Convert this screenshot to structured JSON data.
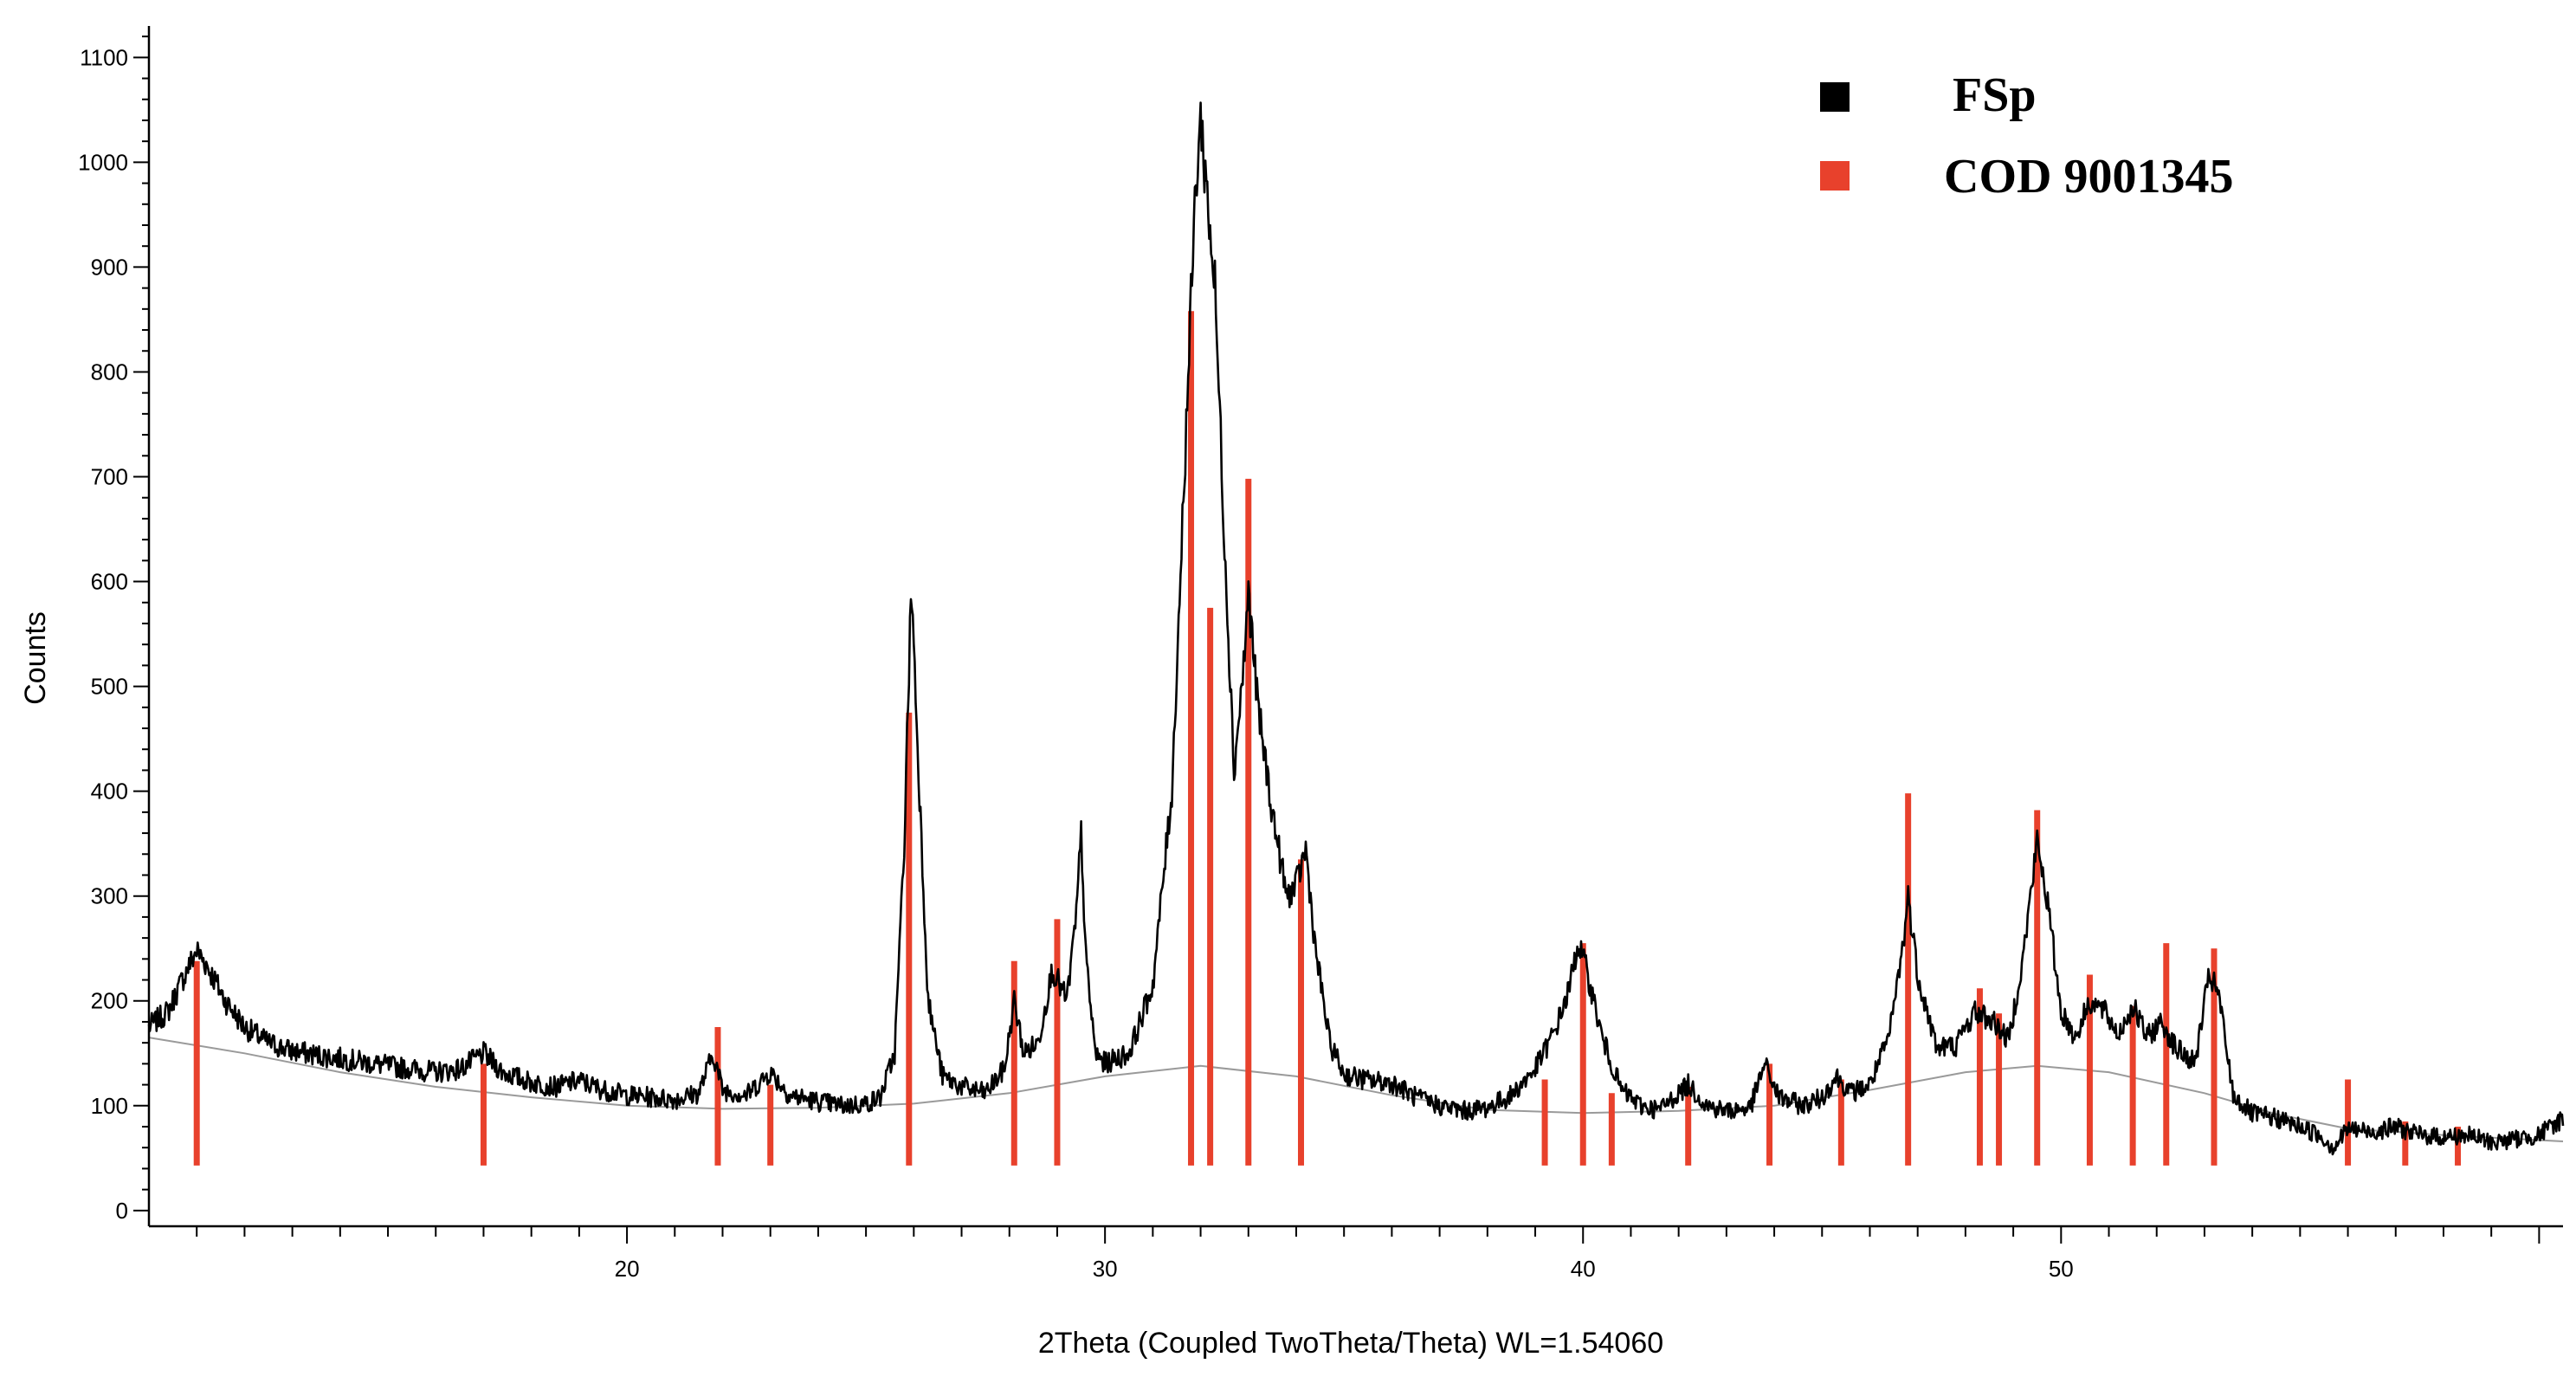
{
  "chart_data": {
    "type": "line",
    "xlabel": "2Theta (Coupled TwoTheta/Theta) WL=1.54060",
    "ylabel": "Counts",
    "xlim": [
      10,
      60.5
    ],
    "ylim": [
      -15,
      1130
    ],
    "x_ticks": [
      20,
      30,
      40,
      50
    ],
    "y_ticks": [
      0,
      100,
      200,
      300,
      400,
      500,
      600,
      700,
      800,
      900,
      1000,
      1100
    ],
    "grid": false,
    "legend_position": "top-right",
    "legend": [
      {
        "label": "FSp",
        "color": "#000000"
      },
      {
        "label": "COD 9001345",
        "color": "#e8412c"
      }
    ],
    "series": [
      {
        "name": "FSp",
        "color": "#000000",
        "kind": "pattern",
        "points": [
          [
            10.0,
            175
          ],
          [
            10.4,
            190
          ],
          [
            10.8,
            230
          ],
          [
            11.0,
            248
          ],
          [
            11.2,
            235
          ],
          [
            11.6,
            200
          ],
          [
            12.0,
            175
          ],
          [
            12.5,
            160
          ],
          [
            13.0,
            152
          ],
          [
            14.0,
            145
          ],
          [
            15.0,
            138
          ],
          [
            16.0,
            132
          ],
          [
            16.5,
            135
          ],
          [
            17.0,
            150
          ],
          [
            17.4,
            132
          ],
          [
            18.0,
            122
          ],
          [
            18.5,
            118
          ],
          [
            19.0,
            124
          ],
          [
            19.5,
            115
          ],
          [
            20.0,
            110
          ],
          [
            20.5,
            108
          ],
          [
            21.0,
            106
          ],
          [
            21.5,
            112
          ],
          [
            21.8,
            150
          ],
          [
            22.0,
            115
          ],
          [
            22.5,
            110
          ],
          [
            23.0,
            132
          ],
          [
            23.4,
            110
          ],
          [
            24.0,
            104
          ],
          [
            24.5,
            100
          ],
          [
            25.0,
            102
          ],
          [
            25.3,
            108
          ],
          [
            25.6,
            150
          ],
          [
            25.8,
            350
          ],
          [
            25.95,
            600
          ],
          [
            26.1,
            420
          ],
          [
            26.3,
            200
          ],
          [
            26.6,
            128
          ],
          [
            27.0,
            118
          ],
          [
            27.5,
            112
          ],
          [
            27.9,
            135
          ],
          [
            28.1,
            200
          ],
          [
            28.3,
            150
          ],
          [
            28.6,
            160
          ],
          [
            28.9,
            230
          ],
          [
            29.2,
            200
          ],
          [
            29.4,
            280
          ],
          [
            29.5,
            360
          ],
          [
            29.6,
            240
          ],
          [
            29.8,
            150
          ],
          [
            30.0,
            140
          ],
          [
            30.5,
            150
          ],
          [
            31.0,
            215
          ],
          [
            31.4,
            400
          ],
          [
            31.7,
            750
          ],
          [
            31.9,
            980
          ],
          [
            32.0,
            1040
          ],
          [
            32.1,
            990
          ],
          [
            32.3,
            880
          ],
          [
            32.5,
            640
          ],
          [
            32.7,
            420
          ],
          [
            32.9,
            520
          ],
          [
            33.0,
            590
          ],
          [
            33.2,
            480
          ],
          [
            33.5,
            380
          ],
          [
            33.8,
            300
          ],
          [
            34.0,
            310
          ],
          [
            34.2,
            345
          ],
          [
            34.4,
            250
          ],
          [
            34.7,
            160
          ],
          [
            35.0,
            130
          ],
          [
            35.5,
            124
          ],
          [
            36.0,
            122
          ],
          [
            36.5,
            108
          ],
          [
            37.0,
            100
          ],
          [
            37.5,
            95
          ],
          [
            38.0,
            98
          ],
          [
            38.5,
            110
          ],
          [
            39.0,
            135
          ],
          [
            39.4,
            170
          ],
          [
            39.7,
            210
          ],
          [
            39.9,
            255
          ],
          [
            40.1,
            225
          ],
          [
            40.4,
            165
          ],
          [
            40.8,
            115
          ],
          [
            41.2,
            100
          ],
          [
            41.6,
            96
          ],
          [
            42.0,
            112
          ],
          [
            42.2,
            120
          ],
          [
            42.6,
            100
          ],
          [
            43.0,
            95
          ],
          [
            43.5,
            98
          ],
          [
            43.8,
            140
          ],
          [
            44.1,
            108
          ],
          [
            44.6,
            100
          ],
          [
            45.0,
            108
          ],
          [
            45.3,
            128
          ],
          [
            45.6,
            112
          ],
          [
            46.0,
            120
          ],
          [
            46.4,
            165
          ],
          [
            46.7,
            255
          ],
          [
            46.8,
            300
          ],
          [
            47.0,
            225
          ],
          [
            47.4,
            155
          ],
          [
            47.8,
            158
          ],
          [
            48.2,
            190
          ],
          [
            48.6,
            180
          ],
          [
            48.9,
            162
          ],
          [
            49.2,
            240
          ],
          [
            49.5,
            352
          ],
          [
            49.7,
            300
          ],
          [
            50.0,
            190
          ],
          [
            50.3,
            165
          ],
          [
            50.6,
            200
          ],
          [
            50.9,
            190
          ],
          [
            51.2,
            168
          ],
          [
            51.5,
            195
          ],
          [
            51.8,
            165
          ],
          [
            52.1,
            180
          ],
          [
            52.4,
            155
          ],
          [
            52.8,
            140
          ],
          [
            53.1,
            225
          ],
          [
            53.3,
            205
          ],
          [
            53.6,
            110
          ],
          [
            54.0,
            92
          ],
          [
            54.5,
            88
          ],
          [
            55.0,
            80
          ],
          [
            55.4,
            72
          ],
          [
            55.7,
            60
          ],
          [
            56.0,
            78
          ],
          [
            56.5,
            75
          ],
          [
            57.0,
            80
          ],
          [
            57.5,
            72
          ],
          [
            58.0,
            70
          ],
          [
            58.5,
            72
          ],
          [
            59.0,
            65
          ],
          [
            59.5,
            68
          ],
          [
            60.0,
            72
          ],
          [
            60.5,
            88
          ]
        ]
      },
      {
        "name": "COD 9001345",
        "color": "#e8412c",
        "kind": "sticks",
        "sticks": [
          [
            11.0,
            238
          ],
          [
            17.0,
            140
          ],
          [
            21.9,
            175
          ],
          [
            23.0,
            120
          ],
          [
            25.9,
            475
          ],
          [
            28.1,
            238
          ],
          [
            29.0,
            278
          ],
          [
            31.8,
            858
          ],
          [
            32.2,
            575
          ],
          [
            33.0,
            698
          ],
          [
            34.1,
            335
          ],
          [
            39.2,
            125
          ],
          [
            40.0,
            255
          ],
          [
            40.6,
            112
          ],
          [
            42.2,
            118
          ],
          [
            43.9,
            140
          ],
          [
            45.4,
            125
          ],
          [
            46.8,
            398
          ],
          [
            48.3,
            212
          ],
          [
            48.7,
            188
          ],
          [
            49.5,
            382
          ],
          [
            50.6,
            225
          ],
          [
            51.5,
            195
          ],
          [
            52.2,
            255
          ],
          [
            53.2,
            250
          ],
          [
            56.0,
            125
          ],
          [
            57.2,
            85
          ],
          [
            58.3,
            80
          ]
        ]
      },
      {
        "name": "",
        "color": "#9a9a9a",
        "kind": "background",
        "points": [
          [
            10.0,
            165
          ],
          [
            12.0,
            150
          ],
          [
            14.0,
            132
          ],
          [
            16.0,
            118
          ],
          [
            18.0,
            108
          ],
          [
            20.0,
            100
          ],
          [
            22.0,
            97
          ],
          [
            24.0,
            98
          ],
          [
            26.0,
            102
          ],
          [
            28.0,
            112
          ],
          [
            30.0,
            128
          ],
          [
            32.0,
            138
          ],
          [
            34.0,
            128
          ],
          [
            36.0,
            110
          ],
          [
            38.0,
            96
          ],
          [
            40.0,
            93
          ],
          [
            42.0,
            95
          ],
          [
            44.0,
            100
          ],
          [
            46.0,
            115
          ],
          [
            48.0,
            132
          ],
          [
            49.5,
            138
          ],
          [
            51.0,
            132
          ],
          [
            53.0,
            112
          ],
          [
            54.5,
            92
          ],
          [
            56.0,
            78
          ],
          [
            58.0,
            72
          ],
          [
            60.5,
            66
          ]
        ]
      }
    ]
  }
}
